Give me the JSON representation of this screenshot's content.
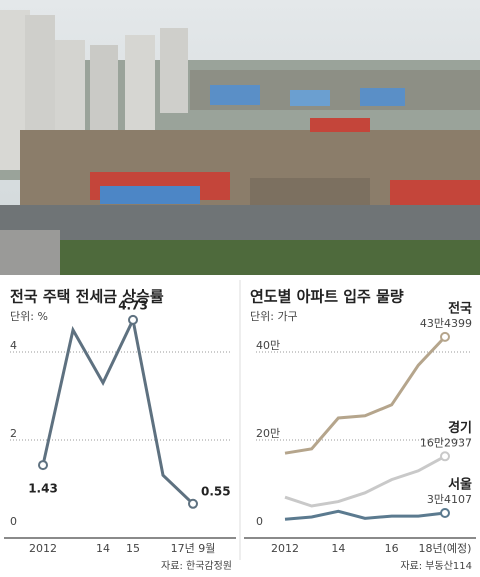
{
  "chart_data": [
    {
      "type": "line",
      "title": "전국 주택 전세금 상승률",
      "subtitle": "단위: %",
      "categories": [
        "2012",
        null,
        "14",
        "15",
        null,
        "17년 9월"
      ],
      "series": [
        {
          "name": null,
          "color": "#5e7180",
          "values": [
            1.43,
            4.5,
            3.3,
            4.73,
            1.2,
            0.55
          ],
          "value_labels": [
            "1.43",
            null,
            null,
            "4.73",
            null,
            "0.55"
          ]
        }
      ],
      "ylim": [
        0,
        5
      ],
      "yticks": [
        0,
        2,
        4
      ],
      "grid": true,
      "source": "자료: 한국감정원"
    },
    {
      "type": "line",
      "title": "연도별 아파트 입주 물량",
      "subtitle": "단위: 가구",
      "categories": [
        "2012",
        null,
        "14",
        null,
        "16",
        null,
        "18년(예정)"
      ],
      "series": [
        {
          "name": "전국",
          "color": "#b5a58c",
          "values": [
            170000,
            180000,
            250000,
            255000,
            280000,
            370000,
            434399
          ],
          "value_labels": [
            null,
            null,
            null,
            null,
            null,
            null,
            "43만4399"
          ]
        },
        {
          "name": "경기",
          "color": "#c9c9c9",
          "values": [
            70000,
            50000,
            60000,
            80000,
            110000,
            130000,
            162937
          ],
          "value_labels": [
            null,
            null,
            null,
            null,
            null,
            null,
            "16만2937"
          ]
        },
        {
          "name": "서울",
          "color": "#5b7a8f",
          "values": [
            20000,
            25000,
            38000,
            22000,
            27000,
            27000,
            34107
          ],
          "value_labels": [
            null,
            null,
            null,
            null,
            null,
            null,
            "3만4107"
          ]
        }
      ],
      "ylim": [
        0,
        450000
      ],
      "yticks": [
        0,
        {
          "value": 200000,
          "label": "20만"
        },
        {
          "value": 400000,
          "label": "40만"
        }
      ],
      "grid": true,
      "source": "자료: 부동산114"
    }
  ]
}
